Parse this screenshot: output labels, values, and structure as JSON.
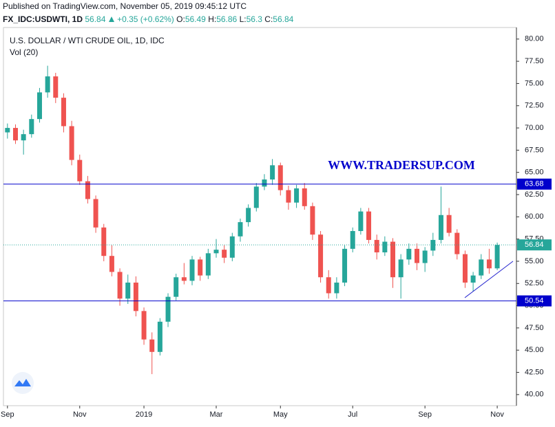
{
  "header": {
    "published": "Published on TradingView.com, November 05, 2019 09:45:12 UTC",
    "symbol": "FX_IDC:USDWTI, 1D",
    "price": 56.84,
    "change": "+0.35 (+0.62%)",
    "ohlc": [
      {
        "label": "O:",
        "value": 56.49
      },
      {
        "label": "H:",
        "value": 56.86
      },
      {
        "label": "L:",
        "value": 56.3
      },
      {
        "label": "C:",
        "value": 56.84
      }
    ]
  },
  "chart_data": {
    "type": "candlestick",
    "title": "U.S. DOLLAR / WTI CRUDE OIL, 1D, IDC",
    "subtitle": "Vol (20)",
    "watermark": "WWW.TRADERSUP.COM",
    "up_color": "#26a69a",
    "down_color": "#ef5350",
    "categories": [
      "Sep",
      null,
      null,
      null,
      null,
      null,
      null,
      null,
      null,
      "Nov",
      null,
      null,
      null,
      null,
      null,
      null,
      null,
      "2019",
      null,
      null,
      null,
      null,
      null,
      null,
      null,
      null,
      "Mar",
      null,
      null,
      null,
      null,
      null,
      null,
      null,
      "May",
      null,
      null,
      null,
      null,
      null,
      null,
      null,
      null,
      "Jul",
      null,
      null,
      null,
      null,
      null,
      null,
      null,
      null,
      "Sep",
      null,
      null,
      null,
      null,
      null,
      null,
      null,
      null,
      "Nov"
    ],
    "open": [
      69.5,
      70.0,
      68.6,
      69.3,
      71.0,
      74.0,
      75.8,
      73.4,
      70.2,
      66.4,
      64.0,
      62.0,
      58.8,
      55.6,
      53.8,
      50.8,
      52.6,
      49.4,
      46.2,
      44.8,
      48.2,
      51.0,
      53.2,
      52.8,
      55.2,
      53.4,
      55.9,
      56.3,
      55.4,
      57.8,
      59.4,
      61.0,
      63.4,
      64.2,
      65.8,
      63.0,
      61.6,
      63.2,
      61.2,
      58.0,
      53.2,
      51.4,
      52.6,
      56.4,
      58.4,
      60.6,
      57.4,
      56.0,
      57.2,
      53.2,
      55.2,
      56.4,
      54.8,
      56.2,
      57.4,
      60.2,
      58.2,
      55.8,
      52.6,
      53.4,
      55.2,
      54.2
    ],
    "high": [
      70.5,
      70.4,
      69.8,
      71.5,
      74.5,
      77.0,
      76.2,
      73.9,
      70.8,
      67.0,
      64.6,
      62.4,
      59.2,
      56.8,
      54.2,
      53.5,
      53.3,
      49.8,
      47.0,
      48.6,
      51.4,
      53.6,
      54.8,
      55.6,
      55.5,
      56.4,
      57.5,
      56.8,
      58.2,
      59.8,
      61.4,
      63.8,
      64.8,
      66.5,
      66.1,
      63.5,
      63.6,
      63.8,
      61.6,
      58.4,
      54.0,
      53.2,
      56.8,
      58.8,
      61.0,
      61.0,
      58.0,
      57.8,
      57.6,
      55.8,
      57.0,
      57.0,
      56.6,
      58.2,
      63.4,
      61.0,
      58.6,
      56.2,
      53.8,
      55.8,
      56.4,
      57.1
    ],
    "low": [
      68.8,
      68.2,
      67.0,
      68.9,
      70.6,
      73.4,
      72.8,
      69.5,
      65.8,
      63.6,
      61.5,
      58.2,
      55.0,
      53.3,
      50.0,
      50.2,
      48.8,
      45.6,
      42.3,
      44.4,
      47.6,
      50.6,
      52.4,
      52.3,
      52.8,
      53.0,
      55.4,
      54.8,
      55.0,
      57.2,
      58.9,
      60.6,
      63.0,
      63.6,
      62.4,
      60.8,
      61.0,
      60.8,
      57.4,
      52.6,
      50.8,
      50.8,
      52.2,
      56.0,
      58.0,
      57.0,
      55.2,
      55.6,
      52.0,
      50.8,
      54.6,
      54.0,
      53.8,
      55.6,
      57.0,
      57.8,
      55.2,
      52.0,
      51.6,
      53.0,
      53.6,
      54.0
    ],
    "close": [
      70.0,
      68.6,
      69.3,
      71.0,
      74.0,
      75.8,
      73.4,
      70.2,
      66.4,
      64.0,
      62.0,
      58.8,
      55.6,
      53.8,
      50.8,
      52.6,
      49.4,
      46.2,
      44.8,
      48.2,
      51.0,
      53.2,
      52.8,
      55.2,
      53.4,
      55.9,
      56.3,
      55.4,
      57.8,
      59.4,
      61.0,
      63.4,
      64.2,
      65.8,
      63.0,
      61.6,
      63.2,
      61.2,
      58.0,
      53.2,
      51.4,
      52.6,
      56.4,
      58.4,
      60.6,
      57.4,
      56.0,
      57.2,
      53.2,
      55.2,
      56.4,
      54.8,
      56.2,
      57.4,
      60.2,
      58.2,
      55.8,
      52.6,
      53.4,
      55.2,
      54.2,
      56.84
    ],
    "hlines": [
      {
        "value": 63.68,
        "color": "#0000cc"
      },
      {
        "value": 50.54,
        "color": "#0000cc"
      }
    ],
    "last_price": {
      "value": 56.84,
      "color": "#26a69a"
    },
    "trend_line": {
      "start": 50.9,
      "end": 55.0,
      "color": "#2a2ad0"
    },
    "ylim": [
      38.75,
      81.3
    ],
    "yticks": [
      {
        "value": 40,
        "label": "40.00"
      },
      {
        "value": 42.5,
        "label": "42.50"
      },
      {
        "value": 45,
        "label": "45.00"
      },
      {
        "value": 47.5,
        "label": "47.50"
      },
      {
        "value": 50,
        "label": "50.00"
      },
      {
        "value": 52.5,
        "label": "52.50"
      },
      {
        "value": 55,
        "label": "55.00"
      },
      {
        "value": 57.5,
        "label": "57.50"
      },
      {
        "value": 60,
        "label": "60.00"
      },
      {
        "value": 62.5,
        "label": "62.50"
      },
      {
        "value": 65,
        "label": "65.00"
      },
      {
        "value": 67.5,
        "label": "67.50"
      },
      {
        "value": 70,
        "label": "70.00"
      },
      {
        "value": 72.5,
        "label": "72.50"
      },
      {
        "value": 75,
        "label": "75.00"
      },
      {
        "value": 77.5,
        "label": "77.50"
      },
      {
        "value": 80,
        "label": "80.00"
      }
    ]
  }
}
